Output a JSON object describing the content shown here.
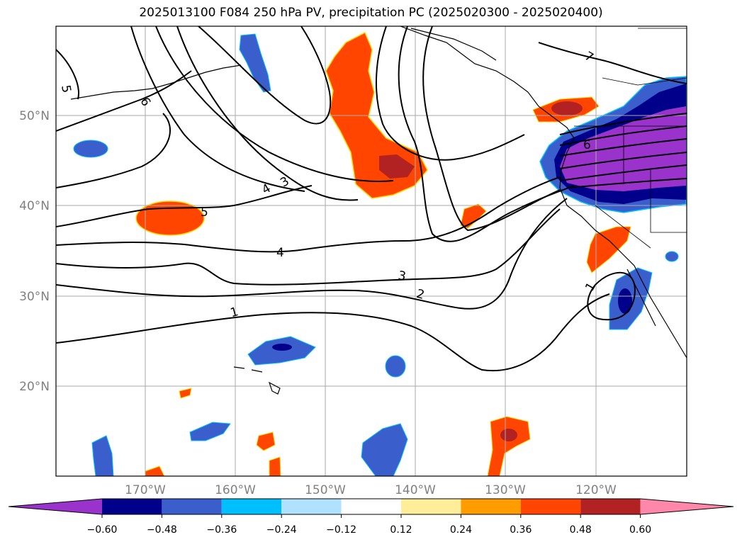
{
  "title": "2025013100 F084 250 hPa PV, precipitation PC (2025020300 - 2025020400)",
  "lat_labels": [
    "50°N",
    "40°N",
    "30°N",
    "20°N"
  ],
  "lon_labels": [
    "170°W",
    "160°W",
    "150°W",
    "140°W",
    "130°W",
    "120°W"
  ],
  "contour_labels": [
    "5",
    "6",
    "7",
    "3",
    "4",
    "5",
    "4",
    "3",
    "2",
    "1",
    "6",
    "1"
  ],
  "colorbar": {
    "tick_labels": [
      "−0.60",
      "−0.48",
      "−0.36",
      "−0.24",
      "−0.12",
      "0.12",
      "0.24",
      "0.36",
      "0.48",
      "0.60"
    ],
    "colors": [
      "#9933cc",
      "#00008b",
      "#3a5fcd",
      "#00bfff",
      "#b0e2ff",
      "#ffffff",
      "#ffee99",
      "#ff9d00",
      "#ff4500",
      "#b22222",
      "#ff88aa"
    ]
  },
  "colors": {
    "contour": "#000000",
    "grid": "#aaaaaa",
    "label": "#808080"
  }
}
